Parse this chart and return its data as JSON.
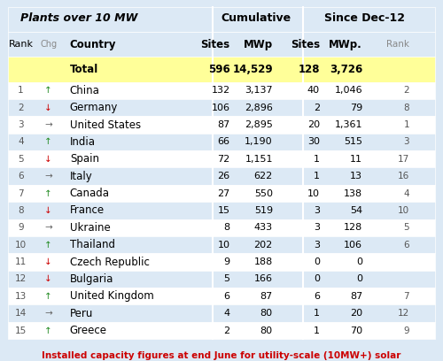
{
  "title_left": "Plants over 10 MW",
  "title_cum": "Cumulative",
  "title_since": "Since Dec-12",
  "header_row": [
    "Rank",
    "Chg",
    "Country",
    "Sites",
    "MWp",
    "Sites",
    "MWp.",
    "Rank"
  ],
  "total_row": [
    "",
    "",
    "Total",
    "596",
    "14,529",
    "128",
    "3,726",
    ""
  ],
  "rows": [
    [
      "1",
      "↑",
      "China",
      "132",
      "3,137",
      "40",
      "1,046",
      "2"
    ],
    [
      "2",
      "↓",
      "Germany",
      "106",
      "2,896",
      "2",
      "79",
      "8"
    ],
    [
      "3",
      "→",
      "United States",
      "87",
      "2,895",
      "20",
      "1,361",
      "1"
    ],
    [
      "4",
      "↑",
      "India",
      "66",
      "1,190",
      "30",
      "515",
      "3"
    ],
    [
      "5",
      "↓",
      "Spain",
      "72",
      "1,151",
      "1",
      "11",
      "17"
    ],
    [
      "6",
      "→",
      "Italy",
      "26",
      "622",
      "1",
      "13",
      "16"
    ],
    [
      "7",
      "↑",
      "Canada",
      "27",
      "550",
      "10",
      "138",
      "4"
    ],
    [
      "8",
      "↓",
      "France",
      "15",
      "519",
      "3",
      "54",
      "10"
    ],
    [
      "9",
      "→",
      "Ukraine",
      "8",
      "433",
      "3",
      "128",
      "5"
    ],
    [
      "10",
      "↑",
      "Thailand",
      "10",
      "202",
      "3",
      "106",
      "6"
    ],
    [
      "11",
      "↓",
      "Czech Republic",
      "9",
      "188",
      "0",
      "0",
      ""
    ],
    [
      "12",
      "↓",
      "Bulgaria",
      "5",
      "166",
      "0",
      "0",
      ""
    ],
    [
      "13",
      "↑",
      "United Kingdom",
      "6",
      "87",
      "6",
      "87",
      "7"
    ],
    [
      "14",
      "→",
      "Peru",
      "4",
      "80",
      "1",
      "20",
      "12"
    ],
    [
      "15",
      "↑",
      "Greece",
      "2",
      "80",
      "1",
      "70",
      "9"
    ]
  ],
  "footer": "Installed capacity figures at end June for utility-scale (10MW+) solar",
  "bg_color": "#dce9f5",
  "header_bg": "#dce9f5",
  "total_bg": "#ffff99",
  "row_odd_bg": "#ffffff",
  "row_even_bg": "#dce9f5",
  "border_color": "#ffffff",
  "footer_color": "#cc0000",
  "header_text_color": "#000000",
  "total_text_color": "#000000"
}
